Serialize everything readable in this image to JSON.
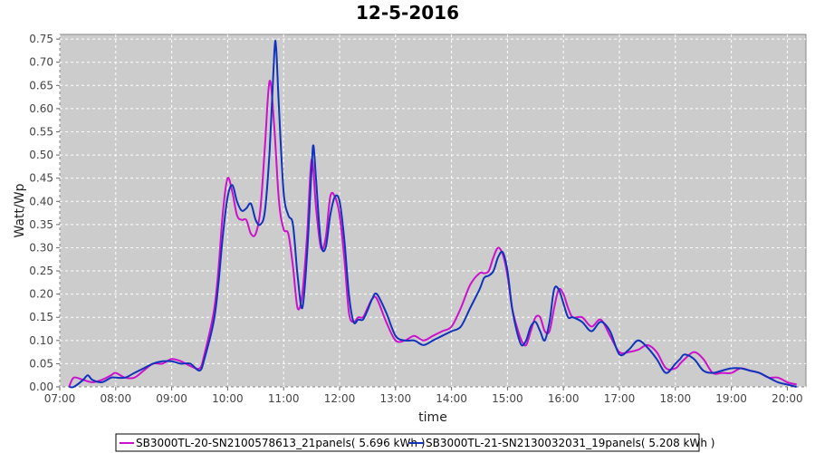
{
  "chart_data": {
    "type": "line",
    "title": "12-5-2016",
    "xlabel": "time",
    "ylabel": "Watt/Wp",
    "xlim": [
      "07:00",
      "20:20"
    ],
    "ylim": [
      0,
      0.76
    ],
    "x_ticks": [
      "07:00",
      "08:00",
      "09:00",
      "10:00",
      "11:00",
      "12:00",
      "13:00",
      "14:00",
      "15:00",
      "16:00",
      "17:00",
      "18:00",
      "19:00",
      "20:00"
    ],
    "y_ticks": [
      "0.00",
      "0.05",
      "0.10",
      "0.15",
      "0.20",
      "0.25",
      "0.30",
      "0.35",
      "0.40",
      "0.45",
      "0.50",
      "0.55",
      "0.60",
      "0.65",
      "0.70",
      "0.75"
    ],
    "grid": true,
    "legend_position": "bottom",
    "plot_background": "#cccccc",
    "series": [
      {
        "name": "SB3000TL-20-SN2100578613_21panels( 5.696 kWh )",
        "color": "#cc11cc",
        "x": [
          "07:10",
          "07:15",
          "07:25",
          "07:35",
          "07:45",
          "07:55",
          "08:00",
          "08:10",
          "08:20",
          "08:30",
          "08:40",
          "08:50",
          "09:00",
          "09:10",
          "09:20",
          "09:30",
          "09:35",
          "09:45",
          "09:50",
          "09:55",
          "10:00",
          "10:05",
          "10:10",
          "10:15",
          "10:20",
          "10:25",
          "10:30",
          "10:35",
          "10:40",
          "10:45",
          "10:50",
          "10:55",
          "11:00",
          "11:05",
          "11:10",
          "11:15",
          "11:20",
          "11:25",
          "11:30",
          "11:35",
          "11:40",
          "11:45",
          "11:50",
          "11:55",
          "12:00",
          "12:05",
          "12:10",
          "12:15",
          "12:20",
          "12:25",
          "12:30",
          "12:35",
          "12:40",
          "12:50",
          "13:00",
          "13:10",
          "13:20",
          "13:30",
          "13:40",
          "13:50",
          "14:00",
          "14:10",
          "14:20",
          "14:30",
          "14:35",
          "14:40",
          "14:45",
          "14:50",
          "14:55",
          "15:00",
          "15:05",
          "15:10",
          "15:15",
          "15:20",
          "15:25",
          "15:30",
          "15:35",
          "15:40",
          "15:45",
          "15:50",
          "15:55",
          "16:00",
          "16:05",
          "16:10",
          "16:20",
          "16:30",
          "16:40",
          "16:50",
          "17:00",
          "17:10",
          "17:20",
          "17:30",
          "17:40",
          "17:50",
          "18:00",
          "18:05",
          "18:10",
          "18:20",
          "18:30",
          "18:40",
          "18:50",
          "19:00",
          "19:10",
          "19:20",
          "19:30",
          "19:40",
          "19:50",
          "20:00",
          "20:10"
        ],
        "values": [
          0.0,
          0.02,
          0.015,
          0.01,
          0.015,
          0.025,
          0.03,
          0.02,
          0.02,
          0.035,
          0.05,
          0.05,
          0.06,
          0.055,
          0.045,
          0.04,
          0.07,
          0.16,
          0.25,
          0.38,
          0.45,
          0.42,
          0.37,
          0.36,
          0.36,
          0.33,
          0.33,
          0.38,
          0.52,
          0.66,
          0.56,
          0.4,
          0.34,
          0.33,
          0.26,
          0.17,
          0.2,
          0.32,
          0.49,
          0.38,
          0.3,
          0.32,
          0.41,
          0.41,
          0.37,
          0.28,
          0.16,
          0.14,
          0.15,
          0.15,
          0.17,
          0.19,
          0.19,
          0.14,
          0.1,
          0.1,
          0.11,
          0.1,
          0.11,
          0.12,
          0.13,
          0.17,
          0.22,
          0.245,
          0.245,
          0.25,
          0.28,
          0.3,
          0.285,
          0.24,
          0.17,
          0.13,
          0.1,
          0.09,
          0.12,
          0.15,
          0.15,
          0.12,
          0.12,
          0.17,
          0.21,
          0.2,
          0.17,
          0.15,
          0.15,
          0.13,
          0.145,
          0.11,
          0.075,
          0.075,
          0.08,
          0.09,
          0.075,
          0.04,
          0.04,
          0.05,
          0.06,
          0.075,
          0.06,
          0.03,
          0.03,
          0.03,
          0.04,
          0.035,
          0.03,
          0.02,
          0.02,
          0.01,
          0.005
        ]
      },
      {
        "name": "SB3000TL-21-SN2130032031_19panels( 5.208 kWh )",
        "color": "#1133bb",
        "x": [
          "07:10",
          "07:15",
          "07:25",
          "07:30",
          "07:35",
          "07:45",
          "07:55",
          "08:00",
          "08:10",
          "08:20",
          "08:30",
          "08:40",
          "08:50",
          "09:00",
          "09:10",
          "09:20",
          "09:30",
          "09:35",
          "09:45",
          "09:50",
          "09:55",
          "10:00",
          "10:05",
          "10:10",
          "10:15",
          "10:20",
          "10:25",
          "10:30",
          "10:35",
          "10:40",
          "10:45",
          "10:50",
          "10:52",
          "10:55",
          "11:00",
          "11:05",
          "11:10",
          "11:15",
          "11:20",
          "11:25",
          "11:30",
          "11:32",
          "11:35",
          "11:40",
          "11:45",
          "11:50",
          "11:55",
          "12:00",
          "12:05",
          "12:10",
          "12:15",
          "12:20",
          "12:25",
          "12:30",
          "12:35",
          "12:40",
          "12:50",
          "13:00",
          "13:10",
          "13:20",
          "13:30",
          "13:40",
          "13:50",
          "14:00",
          "14:10",
          "14:20",
          "14:30",
          "14:35",
          "14:40",
          "14:45",
          "14:50",
          "14:55",
          "15:00",
          "15:05",
          "15:10",
          "15:15",
          "15:20",
          "15:25",
          "15:30",
          "15:35",
          "15:40",
          "15:45",
          "15:50",
          "15:55",
          "16:00",
          "16:05",
          "16:10",
          "16:20",
          "16:30",
          "16:40",
          "16:50",
          "17:00",
          "17:10",
          "17:20",
          "17:30",
          "17:40",
          "17:50",
          "18:00",
          "18:05",
          "18:10",
          "18:20",
          "18:30",
          "18:40",
          "18:50",
          "19:00",
          "19:10",
          "19:20",
          "19:30",
          "19:40",
          "19:50",
          "20:00",
          "20:10"
        ],
        "values": [
          0.0,
          0.0,
          0.015,
          0.025,
          0.015,
          0.01,
          0.02,
          0.02,
          0.02,
          0.03,
          0.04,
          0.05,
          0.055,
          0.055,
          0.05,
          0.05,
          0.035,
          0.06,
          0.14,
          0.22,
          0.33,
          0.41,
          0.435,
          0.4,
          0.38,
          0.385,
          0.395,
          0.36,
          0.35,
          0.38,
          0.51,
          0.72,
          0.73,
          0.6,
          0.42,
          0.37,
          0.35,
          0.24,
          0.17,
          0.28,
          0.47,
          0.52,
          0.44,
          0.31,
          0.3,
          0.37,
          0.41,
          0.4,
          0.32,
          0.2,
          0.14,
          0.145,
          0.145,
          0.165,
          0.19,
          0.2,
          0.16,
          0.11,
          0.1,
          0.1,
          0.09,
          0.1,
          0.11,
          0.12,
          0.13,
          0.17,
          0.21,
          0.235,
          0.24,
          0.25,
          0.28,
          0.29,
          0.25,
          0.17,
          0.12,
          0.09,
          0.1,
          0.13,
          0.14,
          0.12,
          0.1,
          0.14,
          0.21,
          0.21,
          0.18,
          0.15,
          0.15,
          0.14,
          0.12,
          0.14,
          0.12,
          0.07,
          0.08,
          0.1,
          0.085,
          0.06,
          0.03,
          0.05,
          0.06,
          0.07,
          0.06,
          0.035,
          0.03,
          0.035,
          0.04,
          0.04,
          0.035,
          0.03,
          0.02,
          0.01,
          0.005,
          0.0
        ]
      }
    ]
  }
}
